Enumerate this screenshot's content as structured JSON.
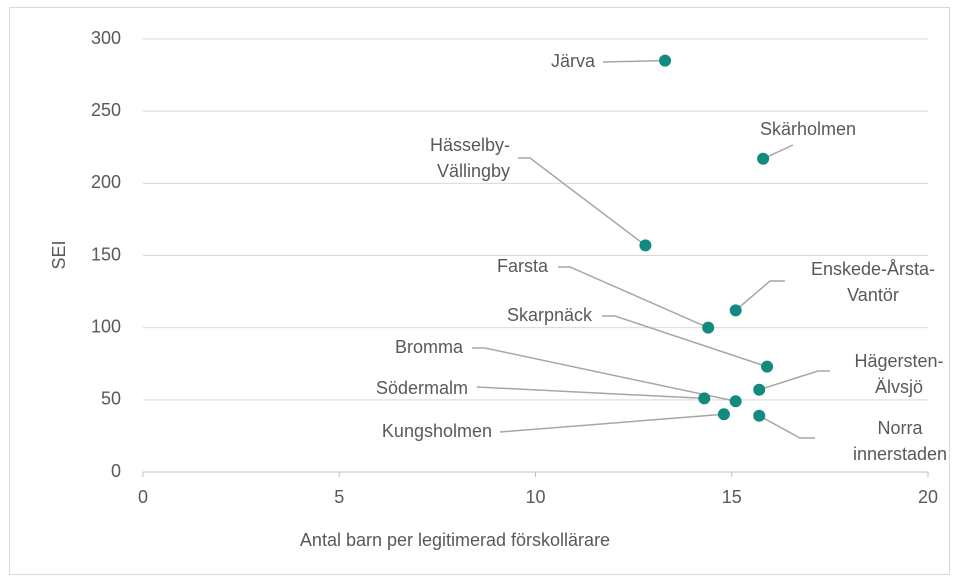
{
  "chart_data": {
    "type": "scatter",
    "xlabel": "Antal barn per legitimerad förskollärare",
    "ylabel": "SEI",
    "labels": [
      [
        "Järva"
      ],
      [
        "Skärholmen"
      ],
      [
        "Hässelby-",
        "Vällingby"
      ],
      [
        "Enskede-Årsta-",
        "Vantör"
      ],
      [
        "Farsta"
      ],
      [
        "Skarpnäck"
      ],
      [
        "Hägersten-",
        "Älvsjö"
      ],
      [
        "Bromma"
      ],
      [
        "Södermalm"
      ],
      [
        "Kungsholmen"
      ],
      [
        "Norra",
        "innerstaden"
      ]
    ],
    "x": [
      13.3,
      15.8,
      12.8,
      15.1,
      14.4,
      15.9,
      15.7,
      15.1,
      14.3,
      14.8,
      15.7
    ],
    "values": [
      285,
      217,
      157,
      112,
      100,
      73,
      57,
      49,
      51,
      40,
      39
    ],
    "color": "#138a7e",
    "xlim": [
      0,
      20
    ],
    "xticks": [
      0,
      5,
      10,
      15,
      20
    ],
    "ylim": [
      0,
      300
    ],
    "yticks": [
      0,
      50,
      100,
      150,
      200,
      250,
      300
    ],
    "grid": true
  }
}
